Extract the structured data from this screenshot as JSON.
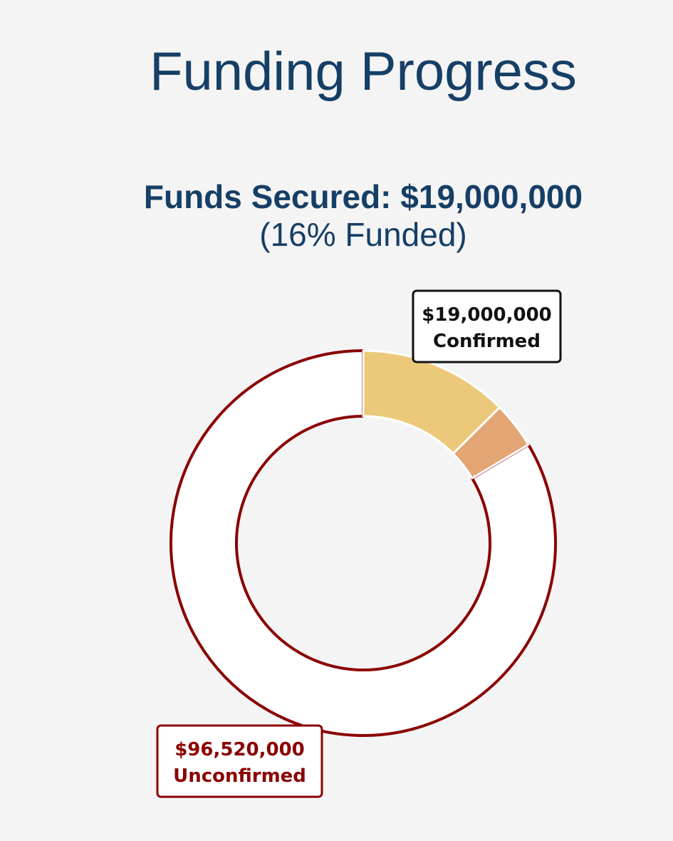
{
  "chart_data": {
    "type": "donut",
    "title": "Funding Progress",
    "subtitle": "Funds Secured: $19,000,000",
    "note": "(16% Funded)",
    "slices": [
      {
        "value": 14500000,
        "color": "#ecc97a",
        "stroke": "#ffffff"
      },
      {
        "value": 4500000,
        "color": "#e3a574",
        "stroke": "#ffffff"
      },
      {
        "value": 96520000,
        "color": "#ffffff",
        "stroke": "#8b0000"
      }
    ],
    "callouts": [
      {
        "value_label": "$19,000,000",
        "name": "Confirmed",
        "color": "#111111"
      },
      {
        "value_label": "$96,520,000",
        "name": "Unconfirmed",
        "color": "#8b0000"
      }
    ]
  }
}
